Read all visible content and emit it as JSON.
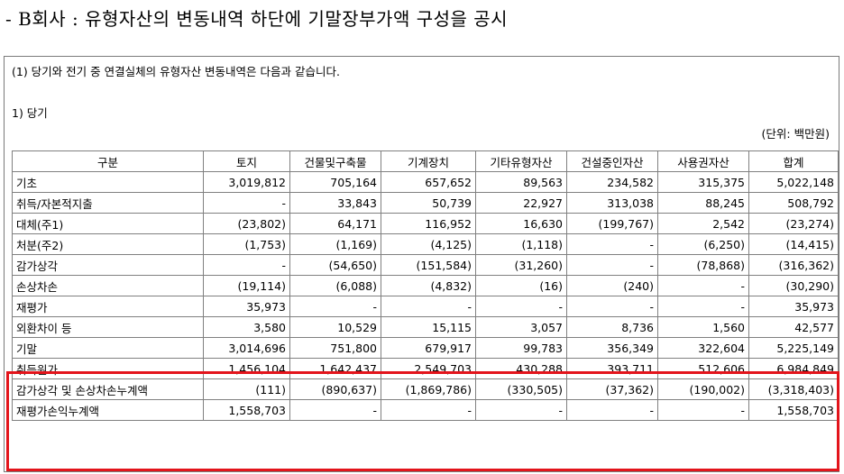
{
  "headline": "- B회사 : 유형자산의 변동내역 하단에 기말장부가액 구성을 공시",
  "intro": "(1) 당기와 전기 중 연결실체의 유형자산 변동내역은 다음과 같습니다.",
  "section": "1) 당기",
  "unit": "(단위: 백만원)",
  "table": {
    "headers": [
      "구분",
      "토지",
      "건물및구축물",
      "기계장치",
      "기타유형자산",
      "건설중인자산",
      "사용권자산",
      "합계"
    ],
    "rows": [
      {
        "label": "기초",
        "cells": [
          "3,019,812",
          "705,164",
          "657,652",
          "89,563",
          "234,582",
          "315,375",
          "5,022,148"
        ]
      },
      {
        "label": "취득/자본적지출",
        "cells": [
          "-",
          "33,843",
          "50,739",
          "22,927",
          "313,038",
          "88,245",
          "508,792"
        ]
      },
      {
        "label": "대체(주1)",
        "cells": [
          "(23,802)",
          "64,171",
          "116,952",
          "16,630",
          "(199,767)",
          "2,542",
          "(23,274)"
        ]
      },
      {
        "label": "처분(주2)",
        "cells": [
          "(1,753)",
          "(1,169)",
          "(4,125)",
          "(1,118)",
          "-",
          "(6,250)",
          "(14,415)"
        ]
      },
      {
        "label": "감가상각",
        "cells": [
          "-",
          "(54,650)",
          "(151,584)",
          "(31,260)",
          "-",
          "(78,868)",
          "(316,362)"
        ]
      },
      {
        "label": "손상차손",
        "cells": [
          "(19,114)",
          "(6,088)",
          "(4,832)",
          "(16)",
          "(240)",
          "-",
          "(30,290)"
        ]
      },
      {
        "label": "재평가",
        "cells": [
          "35,973",
          "-",
          "-",
          "-",
          "-",
          "-",
          "35,973"
        ]
      },
      {
        "label": "외환차이 등",
        "cells": [
          "3,580",
          "10,529",
          "15,115",
          "3,057",
          "8,736",
          "1,560",
          "42,577"
        ]
      },
      {
        "label": "기말",
        "cells": [
          "3,014,696",
          "751,800",
          "679,917",
          "99,783",
          "356,349",
          "322,604",
          "5,225,149"
        ]
      },
      {
        "label": "취득원가",
        "cells": [
          "1,456,104",
          "1,642,437",
          "2,549,703",
          "430,288",
          "393,711",
          "512,606",
          "6,984,849"
        ]
      },
      {
        "label": "감가상각 및 손상차손누계액",
        "cells": [
          "(111)",
          "(890,637)",
          "(1,869,786)",
          "(330,505)",
          "(37,362)",
          "(190,002)",
          "(3,318,403)"
        ]
      },
      {
        "label": "재평가손익누계액",
        "cells": [
          "1,558,703",
          "-",
          "-",
          "-",
          "-",
          "-",
          "1,558,703"
        ]
      }
    ]
  },
  "highlight_color": "#e3141b"
}
